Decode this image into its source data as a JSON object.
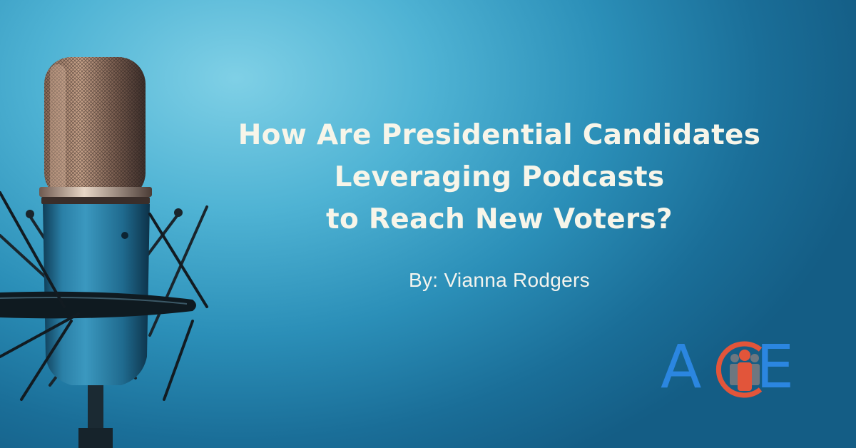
{
  "headline": {
    "line1": "How Are Presidential Candidates",
    "line2": "Leveraging Podcasts",
    "line3": "to Reach New Voters?"
  },
  "byline": "By: Vianna Rodgers",
  "logo": {
    "letter_a": "A",
    "letter_e": "E",
    "blue": "#2b86e0",
    "red": "#e2553a",
    "figure_color": "#6d7780"
  },
  "icons": [
    "microphone-icon",
    "people-icon"
  ]
}
